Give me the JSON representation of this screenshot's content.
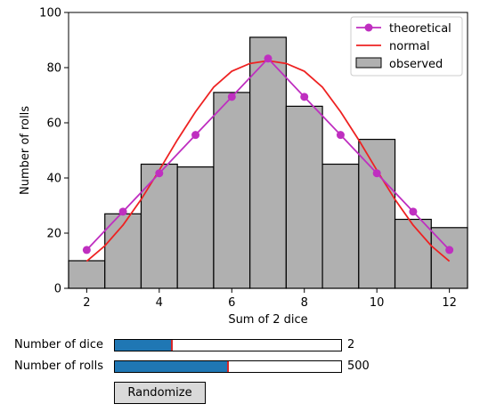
{
  "chart_data": {
    "type": "bar",
    "xlabel": "Sum of 2 dice",
    "ylabel": "Number of rolls",
    "xlim": [
      1.5,
      12.5
    ],
    "ylim": [
      0,
      100
    ],
    "xticks": [
      2,
      4,
      6,
      8,
      10,
      12
    ],
    "yticks": [
      0,
      20,
      40,
      60,
      80,
      100
    ],
    "legend_position": "top-right",
    "categories": [
      2,
      3,
      4,
      5,
      6,
      7,
      8,
      9,
      10,
      11,
      12
    ],
    "series": [
      {
        "name": "observed",
        "type": "bar",
        "color": "#b0b0b0",
        "values": [
          10,
          27,
          45,
          44,
          71,
          91,
          66,
          45,
          54,
          25,
          22
        ]
      },
      {
        "name": "theoretical",
        "type": "line-markers",
        "color": "#bf2fc0",
        "values": [
          13.9,
          27.8,
          41.7,
          55.6,
          69.4,
          83.3,
          69.4,
          55.6,
          41.7,
          27.8,
          13.9
        ]
      },
      {
        "name": "normal",
        "type": "line",
        "color": "#ee2222",
        "x": [
          2,
          2.5,
          3,
          3.5,
          4,
          4.5,
          5,
          5.5,
          6,
          6.5,
          7,
          7.5,
          8,
          8.5,
          9,
          9.5,
          10,
          10.5,
          11,
          11.5,
          12
        ],
        "values": [
          9.8,
          15.4,
          22.9,
          32.2,
          42.8,
          53.8,
          64.0,
          72.9,
          78.7,
          81.5,
          82.5,
          81.5,
          78.7,
          72.9,
          64.0,
          53.8,
          42.8,
          32.2,
          22.9,
          15.4,
          9.8
        ]
      }
    ]
  },
  "controls": {
    "dice": {
      "label": "Number of dice",
      "value": "2",
      "fraction": 0.25
    },
    "rolls": {
      "label": "Number of rolls",
      "value": "500",
      "fraction": 0.5
    },
    "randomize_label": "Randomize"
  }
}
